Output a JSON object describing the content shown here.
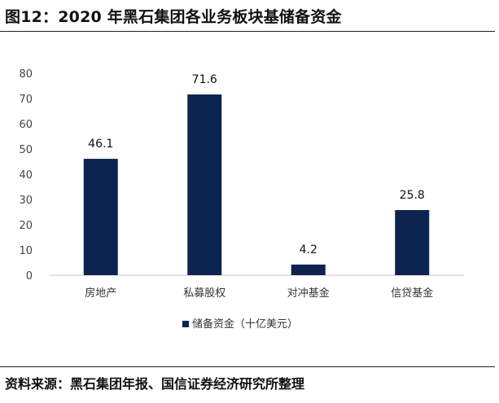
{
  "figure": {
    "title": "图12：2020 年黑石集团各业务板块基储备资金",
    "source": "资料来源：黑石集团年报、国信证券经济研究所整理"
  },
  "colors": {
    "bar": "#0d2350",
    "axis": "#c8c8c8"
  },
  "chart_data": {
    "type": "bar",
    "categories": [
      "房地产",
      "私募股权",
      "对冲基金",
      "信贷基金"
    ],
    "series": [
      {
        "name": "储备资金（十亿美元）",
        "values": [
          46.1,
          71.6,
          4.2,
          25.8
        ]
      }
    ],
    "value_labels": [
      "46.1",
      "71.6",
      "4.2",
      "25.8"
    ],
    "yticks": [
      "0",
      "10",
      "20",
      "30",
      "40",
      "50",
      "60",
      "70",
      "80"
    ],
    "ylim": [
      0,
      80
    ],
    "grid": false,
    "legend_position": "bottom-center",
    "xlabel": "",
    "ylabel": ""
  }
}
